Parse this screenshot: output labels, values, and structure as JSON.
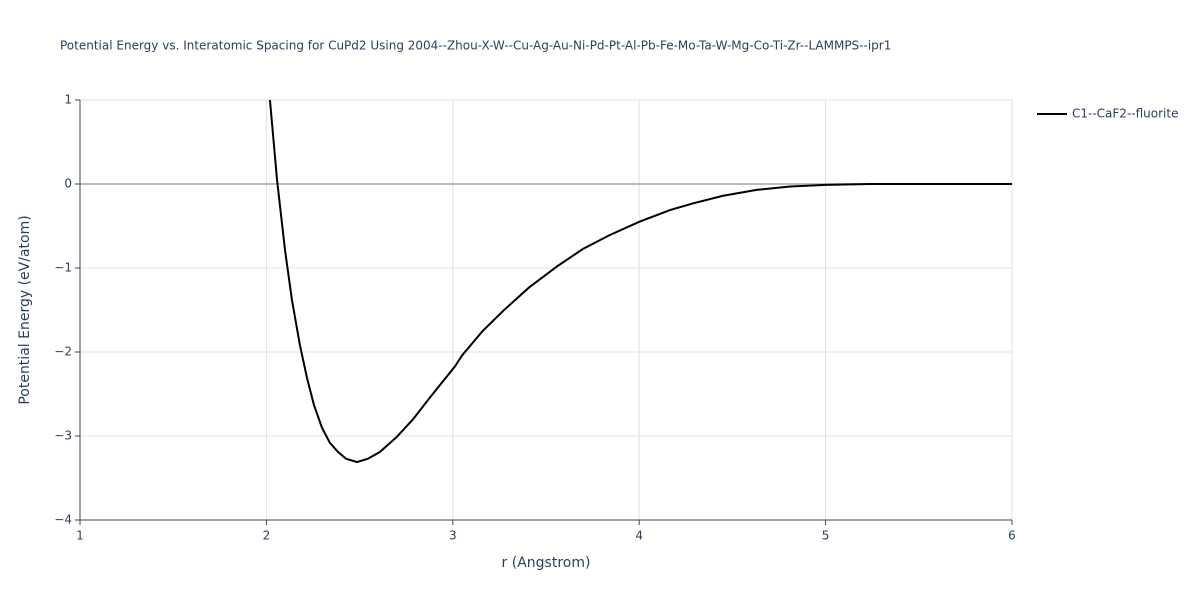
{
  "chart_data": {
    "type": "line",
    "title": "Potential Energy vs. Interatomic Spacing for CuPd2 Using 2004--Zhou-X-W--Cu-Ag-Au-Ni-Pd-Pt-Al-Pb-Fe-Mo-Ta-W-Mg-Co-Ti-Zr--LAMMPS--ipr1",
    "xlabel": "r (Angstrom)",
    "ylabel": "Potential Energy (eV/atom)",
    "xlim": [
      1,
      6
    ],
    "ylim": [
      -4,
      1
    ],
    "xticks": [
      1,
      2,
      3,
      4,
      5,
      6
    ],
    "yticks": [
      {
        "value": -4,
        "label": "−4"
      },
      {
        "value": -3,
        "label": "−3"
      },
      {
        "value": -2,
        "label": "−2"
      },
      {
        "value": -1,
        "label": "−1"
      },
      0,
      1
    ],
    "grid": true,
    "legend": "top-right",
    "series": [
      {
        "name": "C1--CaF2--fluorite",
        "color": "#000000",
        "x": [
          2.019,
          2.057,
          2.1,
          2.137,
          2.18,
          2.218,
          2.255,
          2.298,
          2.34,
          2.384,
          2.427,
          2.486,
          2.545,
          2.609,
          2.7,
          2.787,
          2.878,
          3.012,
          3.05,
          3.16,
          3.275,
          3.41,
          3.56,
          3.7,
          3.84,
          4.0,
          4.165,
          4.29,
          4.45,
          4.63,
          4.81,
          5.0,
          5.24,
          6.0
        ],
        "values": [
          1,
          0.05,
          -0.79,
          -1.38,
          -1.92,
          -2.31,
          -2.63,
          -2.9,
          -3.08,
          -3.19,
          -3.27,
          -3.31,
          -3.27,
          -3.19,
          -3.01,
          -2.8,
          -2.54,
          -2.17,
          -2.04,
          -1.75,
          -1.5,
          -1.23,
          -0.98,
          -0.77,
          -0.61,
          -0.45,
          -0.31,
          -0.23,
          -0.14,
          -0.07,
          -0.03,
          -0.01,
          0,
          0
        ]
      }
    ]
  }
}
